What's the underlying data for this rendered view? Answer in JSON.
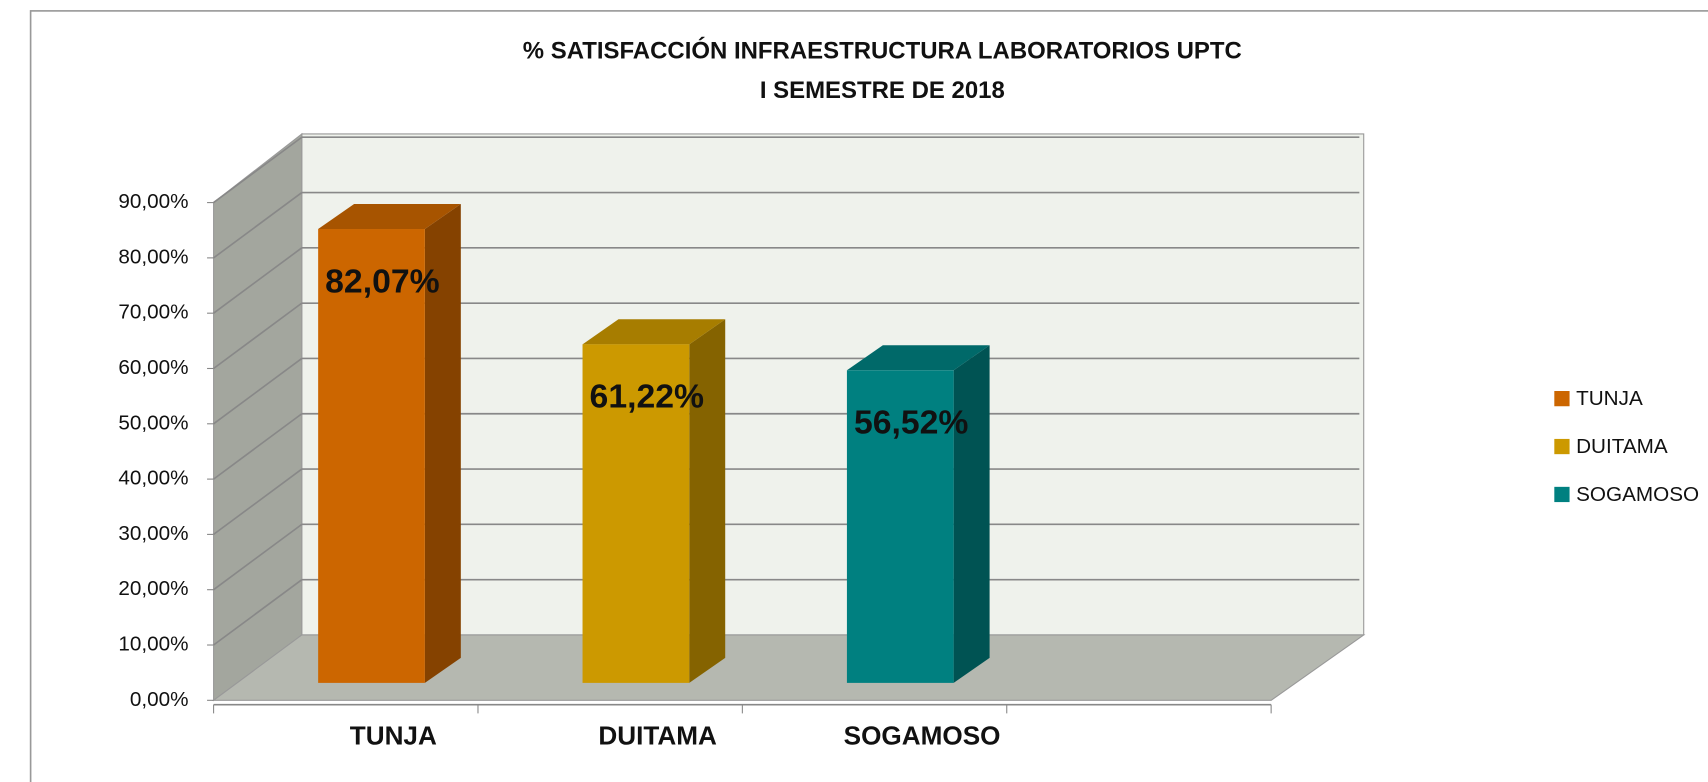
{
  "chart_data": {
    "type": "bar3d",
    "title": "% SATISFACCIÓN INFRAESTRUCTURA  LABORATORIOS UPTC",
    "subtitle": "I SEMESTRE DE 2018",
    "categories": [
      "TUNJA",
      "DUITAMA",
      "SOGAMOSO"
    ],
    "values": [
      82.07,
      61.22,
      56.52
    ],
    "value_labels": [
      "82,07%",
      "61,22%",
      "56,52%"
    ],
    "colors": [
      "#cc6600",
      "#cc9900",
      "#008080"
    ],
    "ylim": [
      0,
      90
    ],
    "yticks": [
      {
        "value": 0,
        "label": "0,00%"
      },
      {
        "value": 10,
        "label": "10,00%"
      },
      {
        "value": 20,
        "label": "20,00%"
      },
      {
        "value": 30,
        "label": "30,00%"
      },
      {
        "value": 40,
        "label": "40,00%"
      },
      {
        "value": 50,
        "label": "50,00%"
      },
      {
        "value": 60,
        "label": "60,00%"
      },
      {
        "value": 70,
        "label": "70,00%"
      },
      {
        "value": 80,
        "label": "80,00%"
      },
      {
        "value": 90,
        "label": "90,00%"
      }
    ],
    "grid": true,
    "legend": "right"
  }
}
